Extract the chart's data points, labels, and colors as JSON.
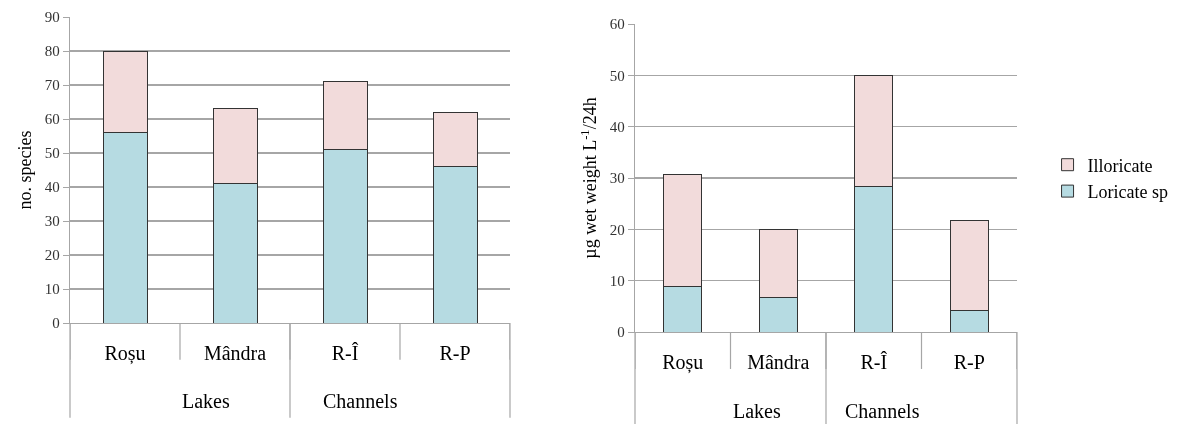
{
  "chart_data": [
    {
      "type": "bar",
      "stacked": true,
      "ylabel": "no. species",
      "categories": [
        "Roșu",
        "Mândra",
        "R-Î",
        "R-P"
      ],
      "series": [
        {
          "color": "#b6dbe2",
          "values": [
            56,
            41,
            51,
            46
          ]
        },
        {
          "color": "#f2dbdb",
          "values": [
            24,
            22,
            20,
            16
          ]
        }
      ],
      "ylim": [
        0,
        90
      ],
      "yticks": [
        0,
        10,
        20,
        30,
        40,
        50,
        60,
        70,
        80,
        90
      ],
      "grid": "y",
      "legend": false,
      "annotations": [
        "Lakes",
        "Channels"
      ]
    },
    {
      "type": "bar",
      "stacked": true,
      "ylabel": "µg wet weight L$^{-1}$/24h",
      "categories": [
        "Roșu",
        "Mândra",
        "R-Î",
        "R-P"
      ],
      "series": [
        {
          "name": "Loricate sp",
          "color": "#b6dbe2",
          "values": [
            8.8,
            6.7,
            28.4,
            4.2
          ]
        },
        {
          "name": "Illoricate",
          "color": "#f2dbdb",
          "values": [
            21.9,
            13.3,
            21.6,
            17.6
          ]
        }
      ],
      "ylim": [
        0,
        60
      ],
      "yticks": [
        0,
        10,
        20,
        30,
        40,
        50,
        60
      ],
      "grid": "y",
      "legend": "right",
      "annotations": [
        "Lakes",
        "Channels"
      ]
    }
  ]
}
